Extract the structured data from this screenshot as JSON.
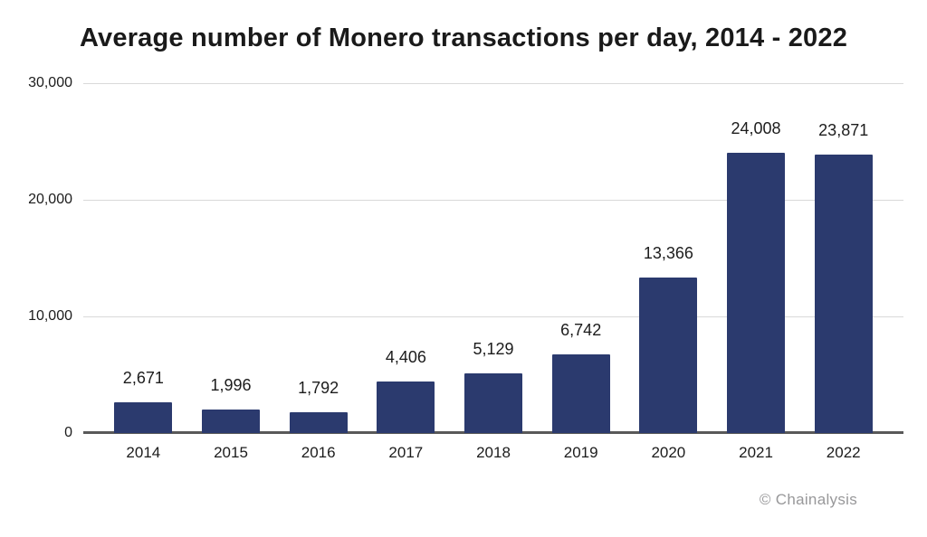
{
  "chart_data": {
    "type": "bar",
    "title": "Average number of Monero transactions per day, 2014 - 2022",
    "categories": [
      "2014",
      "2015",
      "2016",
      "2017",
      "2018",
      "2019",
      "2020",
      "2021",
      "2022"
    ],
    "values": [
      2671,
      1996,
      1792,
      4406,
      5129,
      6742,
      13366,
      24008,
      23871
    ],
    "value_labels": [
      "2,671",
      "1,996",
      "1,792",
      "4,406",
      "5,129",
      "6,742",
      "13,366",
      "24,008",
      "23,871"
    ],
    "xlabel": "",
    "ylabel": "",
    "ylim": [
      0,
      30000
    ],
    "yticks": [
      0,
      10000,
      20000,
      30000
    ],
    "ytick_labels": [
      "0",
      "10,000",
      "20,000",
      "30,000"
    ],
    "grid": true,
    "legend": false
  },
  "credit": "© Chainalysis",
  "colors": {
    "bar": "#2b3a6e",
    "grid": "#d9d9d9",
    "axis": "#595959",
    "text": "#1c1c1c",
    "credit": "#98989a",
    "background": "#ffffff"
  }
}
